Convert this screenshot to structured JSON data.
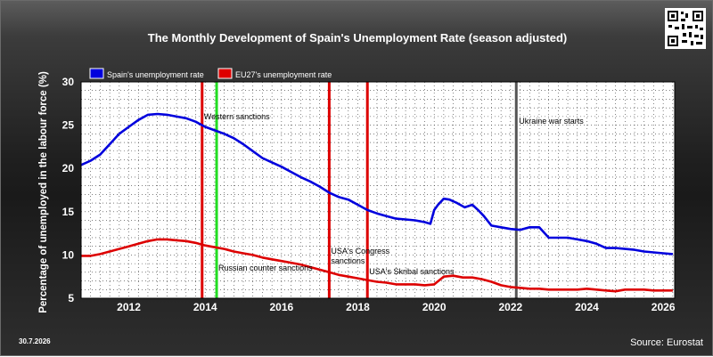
{
  "chart_data": {
    "type": "line",
    "title": "The Monthly Development of Spain's Unemployment Rate (season adjusted)",
    "ylabel": "Percentage of unemployed in the labour force (%)",
    "xlabel": "",
    "xlim": [
      2010.75,
      2026.3
    ],
    "ylim": [
      5,
      30
    ],
    "x_ticks": [
      "2012",
      "2014",
      "2016",
      "2018",
      "2020",
      "2022",
      "2024",
      "2026"
    ],
    "y_ticks": [
      "5",
      "10",
      "15",
      "20",
      "25",
      "30"
    ],
    "grid": true,
    "legend_position": "top-left",
    "series": [
      {
        "name": "Spain's unemployment rate",
        "color": "#0000dd",
        "x": [
          2010.75,
          2011.0,
          2011.25,
          2011.5,
          2011.75,
          2012.0,
          2012.25,
          2012.5,
          2012.75,
          2013.0,
          2013.25,
          2013.5,
          2013.75,
          2014.0,
          2014.25,
          2014.5,
          2014.75,
          2015.0,
          2015.25,
          2015.5,
          2015.75,
          2016.0,
          2016.25,
          2016.5,
          2016.75,
          2017.0,
          2017.25,
          2017.5,
          2017.75,
          2018.0,
          2018.25,
          2018.5,
          2018.75,
          2019.0,
          2019.25,
          2019.5,
          2019.75,
          2019.9,
          2020.0,
          2020.1,
          2020.25,
          2020.4,
          2020.6,
          2020.8,
          2021.0,
          2021.15,
          2021.3,
          2021.5,
          2021.75,
          2022.0,
          2022.25,
          2022.5,
          2022.75,
          2023.0,
          2023.25,
          2023.5,
          2023.75,
          2024.0,
          2024.25,
          2024.5,
          2024.75,
          2025.0,
          2025.25,
          2025.5,
          2025.75,
          2026.0,
          2026.25
        ],
        "y": [
          20.4,
          20.9,
          21.6,
          22.8,
          24.0,
          24.8,
          25.6,
          26.2,
          26.3,
          26.2,
          26.0,
          25.8,
          25.4,
          24.8,
          24.4,
          24.0,
          23.5,
          22.8,
          22.0,
          21.2,
          20.7,
          20.2,
          19.6,
          19.0,
          18.5,
          17.9,
          17.2,
          16.7,
          16.4,
          15.8,
          15.2,
          14.8,
          14.5,
          14.2,
          14.1,
          14.0,
          13.8,
          13.6,
          15.2,
          15.8,
          16.5,
          16.4,
          16.0,
          15.5,
          15.8,
          15.2,
          14.5,
          13.4,
          13.2,
          13.0,
          12.9,
          13.2,
          13.2,
          12.0,
          12.0,
          12.0,
          11.8,
          11.6,
          11.3,
          10.8,
          10.8,
          10.7,
          10.6,
          10.4,
          10.3,
          10.2,
          10.1
        ]
      },
      {
        "name": "EU27's unemployment rate",
        "color": "#dd0000",
        "x": [
          2010.75,
          2011.0,
          2011.25,
          2011.5,
          2011.75,
          2012.0,
          2012.25,
          2012.5,
          2012.75,
          2013.0,
          2013.25,
          2013.5,
          2013.75,
          2014.0,
          2014.25,
          2014.5,
          2014.75,
          2015.0,
          2015.25,
          2015.5,
          2015.75,
          2016.0,
          2016.25,
          2016.5,
          2016.75,
          2017.0,
          2017.25,
          2017.5,
          2017.75,
          2018.0,
          2018.25,
          2018.5,
          2018.75,
          2019.0,
          2019.25,
          2019.5,
          2019.75,
          2020.0,
          2020.25,
          2020.5,
          2020.75,
          2021.0,
          2021.25,
          2021.5,
          2021.75,
          2022.0,
          2022.25,
          2022.5,
          2022.75,
          2023.0,
          2023.25,
          2023.5,
          2023.75,
          2024.0,
          2024.25,
          2024.5,
          2024.75,
          2025.0,
          2025.25,
          2025.5,
          2025.75,
          2026.0,
          2026.25
        ],
        "y": [
          9.9,
          9.9,
          10.1,
          10.4,
          10.7,
          11.0,
          11.3,
          11.6,
          11.8,
          11.8,
          11.7,
          11.6,
          11.4,
          11.1,
          10.9,
          10.7,
          10.4,
          10.2,
          10.0,
          9.7,
          9.5,
          9.3,
          9.1,
          8.9,
          8.6,
          8.3,
          8.0,
          7.7,
          7.5,
          7.3,
          7.1,
          6.9,
          6.8,
          6.6,
          6.6,
          6.6,
          6.5,
          6.6,
          7.5,
          7.6,
          7.4,
          7.4,
          7.2,
          6.9,
          6.5,
          6.3,
          6.2,
          6.1,
          6.1,
          6.0,
          6.0,
          6.0,
          6.0,
          6.1,
          6.0,
          5.9,
          5.8,
          6.0,
          6.0,
          6.0,
          5.9,
          5.9,
          5.9
        ]
      }
    ],
    "events": [
      {
        "x": 2013.92,
        "color": "#dd0000",
        "label": "Western sanctions"
      },
      {
        "x": 2014.3,
        "color": "#22dd22",
        "label": "Russian counter sanctions"
      },
      {
        "x": 2017.25,
        "color": "#dd0000",
        "label": "USA's Congress sanctions"
      },
      {
        "x": 2018.25,
        "color": "#dd0000",
        "label": "USA's Skribal sanctions"
      },
      {
        "x": 2022.15,
        "color": "#555555",
        "label": "Ukraine war starts"
      }
    ]
  },
  "footer": {
    "date": "30.7.2026",
    "source": "Source: Eurostat"
  }
}
